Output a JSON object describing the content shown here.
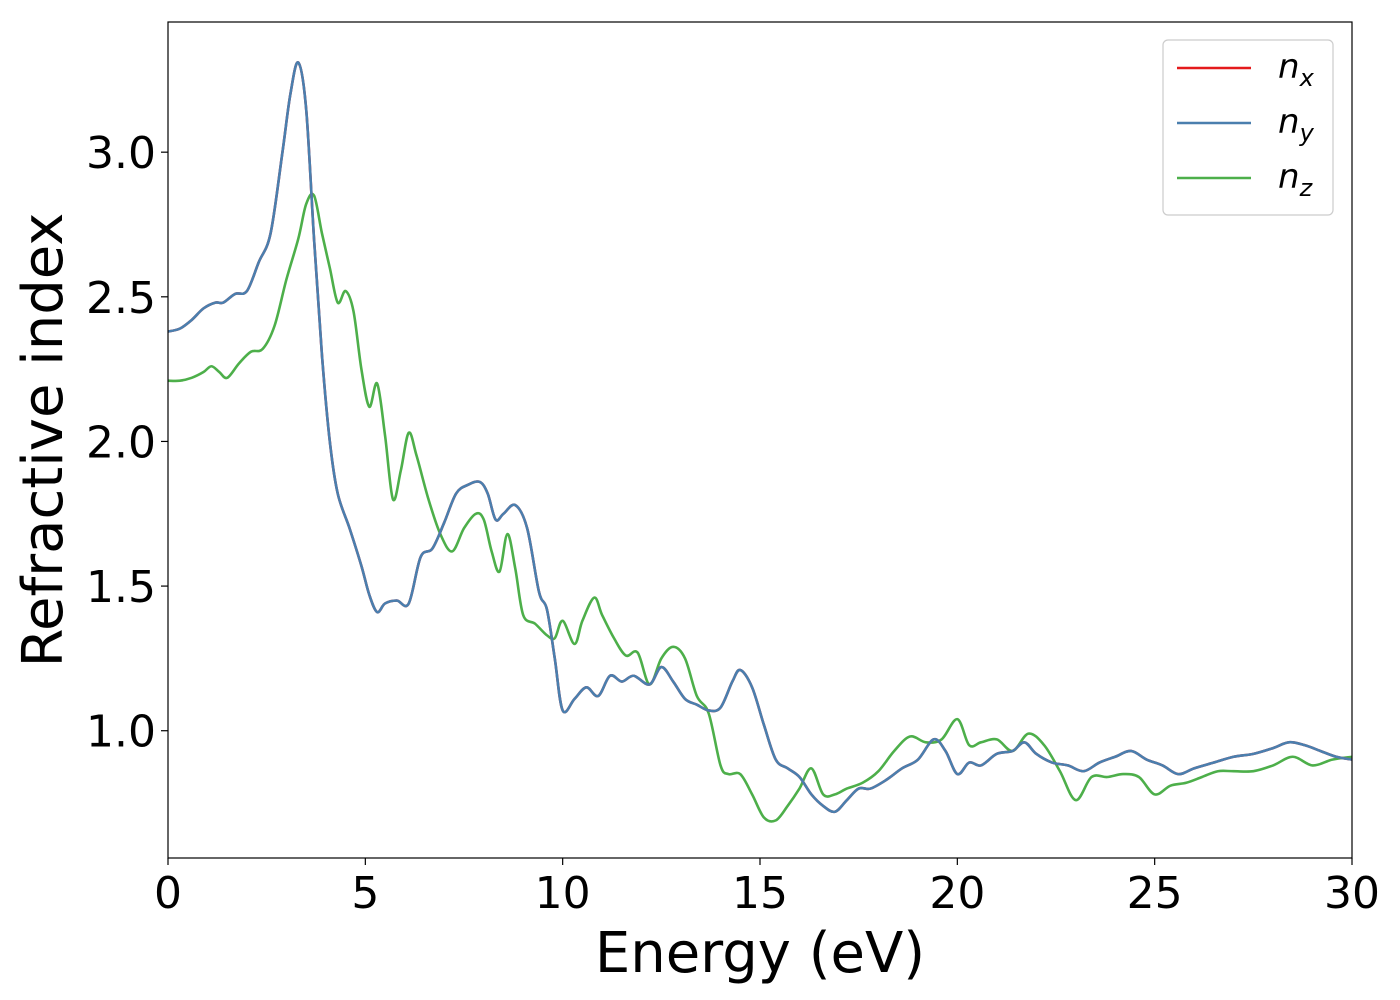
{
  "chart_data": {
    "type": "line",
    "title": "",
    "xlabel": "Energy (eV)",
    "ylabel": "Refractive index",
    "xlim": [
      0,
      30
    ],
    "ylim": [
      0.56,
      3.45
    ],
    "xticks": [
      0,
      5,
      10,
      15,
      20,
      25,
      30
    ],
    "xtick_labels": [
      "0",
      "5",
      "10",
      "15",
      "20",
      "25",
      "30"
    ],
    "yticks": [
      1.0,
      1.5,
      2.0,
      2.5,
      3.0
    ],
    "ytick_labels": [
      "1.0",
      "1.5",
      "2.0",
      "2.5",
      "3.0"
    ],
    "grid": false,
    "legend_position": "top-right",
    "series": [
      {
        "name": "n_x",
        "legend_base": "n",
        "legend_sub": "x",
        "color": "#e41a1c",
        "x": [
          0,
          0.3,
          0.6,
          0.9,
          1.2,
          1.4,
          1.7,
          2.0,
          2.3,
          2.6,
          2.9,
          3.1,
          3.3,
          3.5,
          3.7,
          3.9,
          4.1,
          4.3,
          4.6,
          4.9,
          5.1,
          5.3,
          5.5,
          5.8,
          6.1,
          6.4,
          6.7,
          7.0,
          7.3,
          7.6,
          7.9,
          8.1,
          8.3,
          8.5,
          8.8,
          9.1,
          9.4,
          9.6,
          9.8,
          10.0,
          10.3,
          10.6,
          10.9,
          11.2,
          11.5,
          11.8,
          12.2,
          12.5,
          12.8,
          13.1,
          13.4,
          13.7,
          14.0,
          14.3,
          14.5,
          14.8,
          15.1,
          15.4,
          15.7,
          16.0,
          16.3,
          16.6,
          16.9,
          17.2,
          17.5,
          17.8,
          18.2,
          18.6,
          19.0,
          19.4,
          19.7,
          20.0,
          20.3,
          20.6,
          21.0,
          21.4,
          21.7,
          22.0,
          22.4,
          22.8,
          23.2,
          23.6,
          24.0,
          24.4,
          24.8,
          25.2,
          25.6,
          26.0,
          26.5,
          27.0,
          27.5,
          28.0,
          28.4,
          28.8,
          29.2,
          29.6,
          30.0
        ],
        "y": [
          2.38,
          2.39,
          2.42,
          2.46,
          2.48,
          2.48,
          2.51,
          2.52,
          2.62,
          2.72,
          3.0,
          3.2,
          3.31,
          3.15,
          2.7,
          2.3,
          2.0,
          1.82,
          1.7,
          1.57,
          1.47,
          1.41,
          1.44,
          1.45,
          1.44,
          1.6,
          1.63,
          1.72,
          1.82,
          1.85,
          1.86,
          1.82,
          1.73,
          1.75,
          1.78,
          1.7,
          1.48,
          1.42,
          1.25,
          1.07,
          1.11,
          1.15,
          1.12,
          1.19,
          1.17,
          1.19,
          1.16,
          1.22,
          1.17,
          1.11,
          1.09,
          1.07,
          1.08,
          1.17,
          1.21,
          1.15,
          1.02,
          0.9,
          0.87,
          0.84,
          0.78,
          0.74,
          0.72,
          0.76,
          0.8,
          0.8,
          0.83,
          0.87,
          0.9,
          0.97,
          0.93,
          0.85,
          0.89,
          0.88,
          0.92,
          0.93,
          0.96,
          0.92,
          0.89,
          0.88,
          0.86,
          0.89,
          0.91,
          0.93,
          0.9,
          0.88,
          0.85,
          0.87,
          0.89,
          0.91,
          0.92,
          0.94,
          0.96,
          0.95,
          0.93,
          0.91,
          0.9
        ]
      },
      {
        "name": "n_y",
        "legend_base": "n",
        "legend_sub": "y",
        "color": "#4a7fae",
        "x": [
          0,
          0.3,
          0.6,
          0.9,
          1.2,
          1.4,
          1.7,
          2.0,
          2.3,
          2.6,
          2.9,
          3.1,
          3.3,
          3.5,
          3.7,
          3.9,
          4.1,
          4.3,
          4.6,
          4.9,
          5.1,
          5.3,
          5.5,
          5.8,
          6.1,
          6.4,
          6.7,
          7.0,
          7.3,
          7.6,
          7.9,
          8.1,
          8.3,
          8.5,
          8.8,
          9.1,
          9.4,
          9.6,
          9.8,
          10.0,
          10.3,
          10.6,
          10.9,
          11.2,
          11.5,
          11.8,
          12.2,
          12.5,
          12.8,
          13.1,
          13.4,
          13.7,
          14.0,
          14.3,
          14.5,
          14.8,
          15.1,
          15.4,
          15.7,
          16.0,
          16.3,
          16.6,
          16.9,
          17.2,
          17.5,
          17.8,
          18.2,
          18.6,
          19.0,
          19.4,
          19.7,
          20.0,
          20.3,
          20.6,
          21.0,
          21.4,
          21.7,
          22.0,
          22.4,
          22.8,
          23.2,
          23.6,
          24.0,
          24.4,
          24.8,
          25.2,
          25.6,
          26.0,
          26.5,
          27.0,
          27.5,
          28.0,
          28.4,
          28.8,
          29.2,
          29.6,
          30.0
        ],
        "y": [
          2.38,
          2.39,
          2.42,
          2.46,
          2.48,
          2.48,
          2.51,
          2.52,
          2.62,
          2.72,
          3.0,
          3.2,
          3.31,
          3.15,
          2.7,
          2.3,
          2.0,
          1.82,
          1.7,
          1.57,
          1.47,
          1.41,
          1.44,
          1.45,
          1.44,
          1.6,
          1.63,
          1.72,
          1.82,
          1.85,
          1.86,
          1.82,
          1.73,
          1.75,
          1.78,
          1.7,
          1.48,
          1.42,
          1.25,
          1.07,
          1.11,
          1.15,
          1.12,
          1.19,
          1.17,
          1.19,
          1.16,
          1.22,
          1.17,
          1.11,
          1.09,
          1.07,
          1.08,
          1.17,
          1.21,
          1.15,
          1.02,
          0.9,
          0.87,
          0.84,
          0.78,
          0.74,
          0.72,
          0.76,
          0.8,
          0.8,
          0.83,
          0.87,
          0.9,
          0.97,
          0.93,
          0.85,
          0.89,
          0.88,
          0.92,
          0.93,
          0.96,
          0.92,
          0.89,
          0.88,
          0.86,
          0.89,
          0.91,
          0.93,
          0.9,
          0.88,
          0.85,
          0.87,
          0.89,
          0.91,
          0.92,
          0.94,
          0.96,
          0.95,
          0.93,
          0.91,
          0.9
        ]
      },
      {
        "name": "n_z",
        "legend_base": "n",
        "legend_sub": "z",
        "color": "#4daf4a",
        "x": [
          0,
          0.3,
          0.6,
          0.9,
          1.1,
          1.3,
          1.5,
          1.8,
          2.1,
          2.4,
          2.7,
          3.0,
          3.3,
          3.5,
          3.7,
          3.9,
          4.1,
          4.3,
          4.5,
          4.7,
          4.9,
          5.1,
          5.3,
          5.5,
          5.7,
          5.9,
          6.1,
          6.3,
          6.6,
          6.9,
          7.2,
          7.5,
          7.8,
          8.0,
          8.2,
          8.4,
          8.6,
          8.8,
          9.0,
          9.3,
          9.6,
          9.8,
          10.0,
          10.3,
          10.5,
          10.8,
          11.0,
          11.3,
          11.6,
          11.9,
          12.2,
          12.5,
          12.8,
          13.1,
          13.4,
          13.7,
          14.0,
          14.2,
          14.5,
          14.8,
          15.1,
          15.4,
          15.7,
          16.0,
          16.3,
          16.6,
          16.9,
          17.2,
          17.6,
          18.0,
          18.4,
          18.8,
          19.2,
          19.6,
          20.0,
          20.3,
          20.6,
          21.0,
          21.4,
          21.8,
          22.2,
          22.6,
          23.0,
          23.4,
          23.8,
          24.2,
          24.6,
          25.0,
          25.4,
          25.8,
          26.2,
          26.6,
          27.0,
          27.5,
          28.0,
          28.5,
          29.0,
          29.5,
          30.0
        ],
        "y": [
          2.21,
          2.21,
          2.22,
          2.24,
          2.26,
          2.24,
          2.22,
          2.27,
          2.31,
          2.32,
          2.4,
          2.56,
          2.7,
          2.82,
          2.85,
          2.72,
          2.6,
          2.48,
          2.52,
          2.45,
          2.25,
          2.12,
          2.2,
          2.02,
          1.8,
          1.9,
          2.03,
          1.95,
          1.8,
          1.68,
          1.62,
          1.7,
          1.75,
          1.73,
          1.62,
          1.55,
          1.68,
          1.56,
          1.4,
          1.37,
          1.33,
          1.32,
          1.38,
          1.3,
          1.38,
          1.46,
          1.4,
          1.32,
          1.26,
          1.27,
          1.16,
          1.25,
          1.29,
          1.25,
          1.12,
          1.06,
          0.88,
          0.85,
          0.85,
          0.78,
          0.7,
          0.69,
          0.74,
          0.8,
          0.87,
          0.78,
          0.78,
          0.8,
          0.82,
          0.86,
          0.93,
          0.98,
          0.96,
          0.97,
          1.04,
          0.95,
          0.96,
          0.97,
          0.93,
          0.99,
          0.95,
          0.86,
          0.76,
          0.84,
          0.84,
          0.85,
          0.84,
          0.78,
          0.81,
          0.82,
          0.84,
          0.86,
          0.86,
          0.86,
          0.88,
          0.91,
          0.88,
          0.9,
          0.91
        ]
      }
    ]
  }
}
